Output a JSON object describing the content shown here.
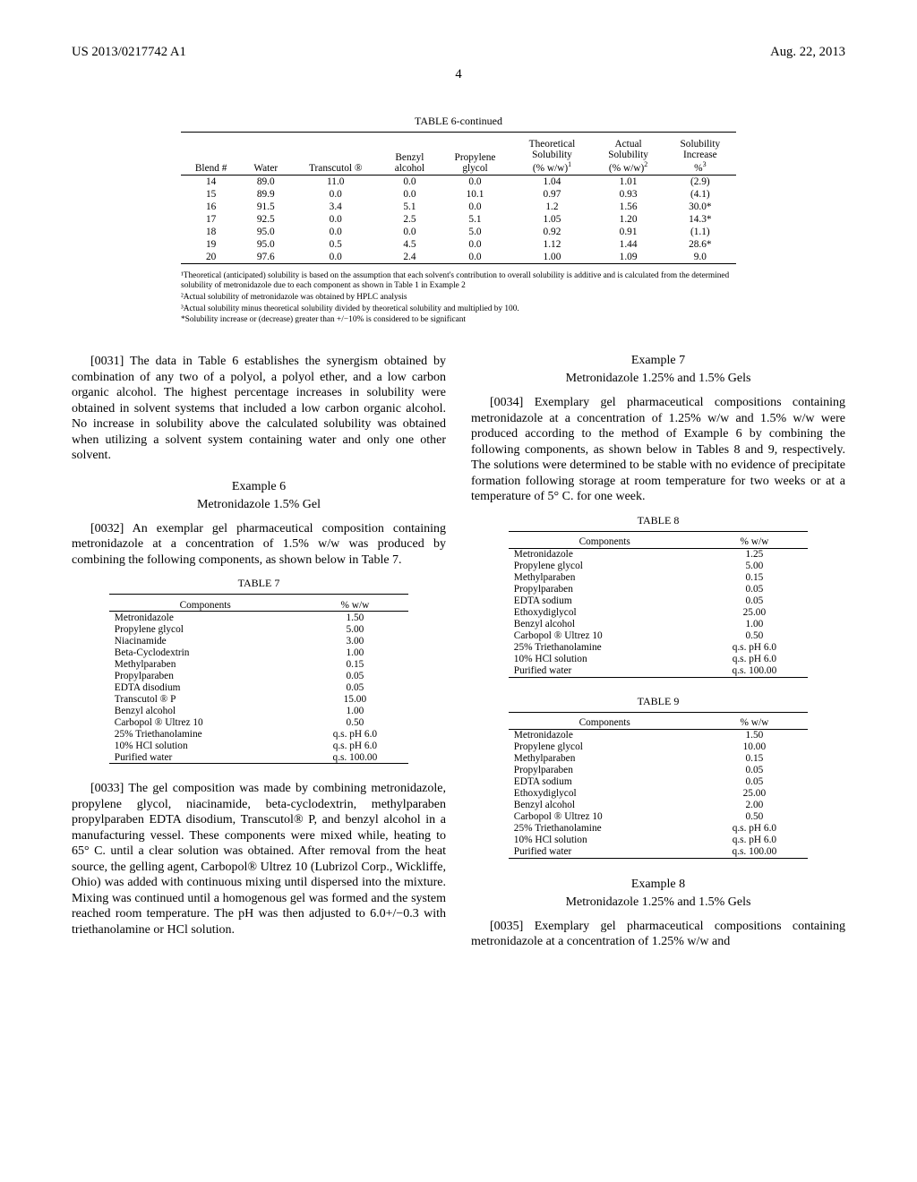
{
  "header": {
    "left": "US 2013/0217742 A1",
    "right": "Aug. 22, 2013",
    "page": "4"
  },
  "table6": {
    "title": "TABLE 6-continued",
    "cols": [
      "Blend #",
      "Water",
      "Transcutol ®",
      "Benzyl alcohol",
      "Propylene glycol",
      "Theoretical Solubility (% w/w)¹",
      "Actual Solubility (% w/w)²",
      "Solubility Increase %³"
    ],
    "rows": [
      [
        "14",
        "89.0",
        "11.0",
        "0.0",
        "0.0",
        "1.04",
        "1.01",
        "(2.9)"
      ],
      [
        "15",
        "89.9",
        "0.0",
        "0.0",
        "10.1",
        "0.97",
        "0.93",
        "(4.1)"
      ],
      [
        "16",
        "91.5",
        "3.4",
        "5.1",
        "0.0",
        "1.2",
        "1.56",
        "30.0*"
      ],
      [
        "17",
        "92.5",
        "0.0",
        "2.5",
        "5.1",
        "1.05",
        "1.20",
        "14.3*"
      ],
      [
        "18",
        "95.0",
        "0.0",
        "0.0",
        "5.0",
        "0.92",
        "0.91",
        "(1.1)"
      ],
      [
        "19",
        "95.0",
        "0.5",
        "4.5",
        "0.0",
        "1.12",
        "1.44",
        "28.6*"
      ],
      [
        "20",
        "97.6",
        "0.0",
        "2.4",
        "0.0",
        "1.00",
        "1.09",
        "9.0"
      ]
    ],
    "fn1": "¹Theoretical (anticipated) solubility is based on the assumption that each solvent's contribution to overall solubility is additive and is calculated from the determined solubility of metronidazole due to each component as shown in Table 1 in Example 2",
    "fn2": "²Actual solubility of metronidazole was obtained by HPLC analysis",
    "fn3": "³Actual solubility minus theoretical solubility divided by theoretical solubility and multiplied by 100.",
    "fn4": "*Solubility increase or (decrease) greater than +/−10% is considered to be significant"
  },
  "p31": "[0031]   The data in Table 6 establishes the synergism obtained by combination of any two of a polyol, a polyol ether, and a low carbon organic alcohol. The highest percentage increases in solubility were obtained in solvent systems that included a low carbon organic alcohol. No increase in solubility above the calculated solubility was obtained when utilizing a solvent system containing water and only one other solvent.",
  "ex6": {
    "title": "Example 6",
    "sub": "Metronidazole 1.5% Gel"
  },
  "p32": "[0032]   An exemplar gel pharmaceutical composition containing metronidazole at a concentration of 1.5% w/w was produced by combining the following components, as shown below in Table 7.",
  "table7": {
    "title": "TABLE 7",
    "cols": [
      "Components",
      "% w/w"
    ],
    "rows": [
      [
        "Metronidazole",
        "1.50"
      ],
      [
        "Propylene glycol",
        "5.00"
      ],
      [
        "Niacinamide",
        "3.00"
      ],
      [
        "Beta-Cyclodextrin",
        "1.00"
      ],
      [
        "Methylparaben",
        "0.15"
      ],
      [
        "Propylparaben",
        "0.05"
      ],
      [
        "EDTA disodium",
        "0.05"
      ],
      [
        "Transcutol ® P",
        "15.00"
      ],
      [
        "Benzyl alcohol",
        "1.00"
      ],
      [
        "Carbopol ® Ultrez 10",
        "0.50"
      ],
      [
        "25% Triethanolamine",
        "q.s. pH 6.0"
      ],
      [
        "10% HCl solution",
        "q.s. pH 6.0"
      ],
      [
        "Purified water",
        "q.s. 100.00"
      ]
    ]
  },
  "p33": "[0033]   The gel composition was made by combining metronidazole, propylene glycol, niacinamide, beta-cyclodextrin, methylparaben propylparaben EDTA disodium, Transcutol® P, and benzyl alcohol in a manufacturing vessel. These components were mixed while, heating to 65° C. until a clear solution was obtained. After removal from the heat source, the gelling agent, Carbopol® Ultrez 10 (Lubrizol Corp., Wickliffe, Ohio) was added with continuous mixing until dispersed into the mixture. Mixing was continued until a homogenous gel was formed and the system reached room temperature. The pH was then adjusted to 6.0+/−0.3 with triethanolamine or HCl solution.",
  "ex7": {
    "title": "Example 7",
    "sub": "Metronidazole 1.25% and 1.5% Gels"
  },
  "p34": "[0034]   Exemplary gel pharmaceutical compositions containing metronidazole at a concentration of 1.25% w/w and 1.5% w/w were produced according to the method of Example 6 by combining the following components, as shown below in Tables 8 and 9, respectively. The solutions were determined to be stable with no evidence of precipitate formation following storage at room temperature for two weeks or at a temperature of 5° C. for one week.",
  "table8": {
    "title": "TABLE 8",
    "cols": [
      "Components",
      "% w/w"
    ],
    "rows": [
      [
        "Metronidazole",
        "1.25"
      ],
      [
        "Propylene glycol",
        "5.00"
      ],
      [
        "Methylparaben",
        "0.15"
      ],
      [
        "Propylparaben",
        "0.05"
      ],
      [
        "EDTA sodium",
        "0.05"
      ],
      [
        "Ethoxydiglycol",
        "25.00"
      ],
      [
        "Benzyl alcohol",
        "1.00"
      ],
      [
        "Carbopol ® Ultrez 10",
        "0.50"
      ],
      [
        "25% Triethanolamine",
        "q.s. pH 6.0"
      ],
      [
        "10% HCl solution",
        "q.s. pH 6.0"
      ],
      [
        "Purified water",
        "q.s. 100.00"
      ]
    ]
  },
  "table9": {
    "title": "TABLE 9",
    "cols": [
      "Components",
      "% w/w"
    ],
    "rows": [
      [
        "Metronidazole",
        "1.50"
      ],
      [
        "Propylene glycol",
        "10.00"
      ],
      [
        "Methylparaben",
        "0.15"
      ],
      [
        "Propylparaben",
        "0.05"
      ],
      [
        "EDTA sodium",
        "0.05"
      ],
      [
        "Ethoxydiglycol",
        "25.00"
      ],
      [
        "Benzyl alcohol",
        "2.00"
      ],
      [
        "Carbopol ® Ultrez 10",
        "0.50"
      ],
      [
        "25% Triethanolamine",
        "q.s. pH 6.0"
      ],
      [
        "10% HCl solution",
        "q.s. pH 6.0"
      ],
      [
        "Purified water",
        "q.s. 100.00"
      ]
    ]
  },
  "ex8": {
    "title": "Example 8",
    "sub": "Metronidazole 1.25% and 1.5% Gels"
  },
  "p35": "[0035]   Exemplary gel pharmaceutical compositions containing metronidazole at a concentration of 1.25% w/w and"
}
